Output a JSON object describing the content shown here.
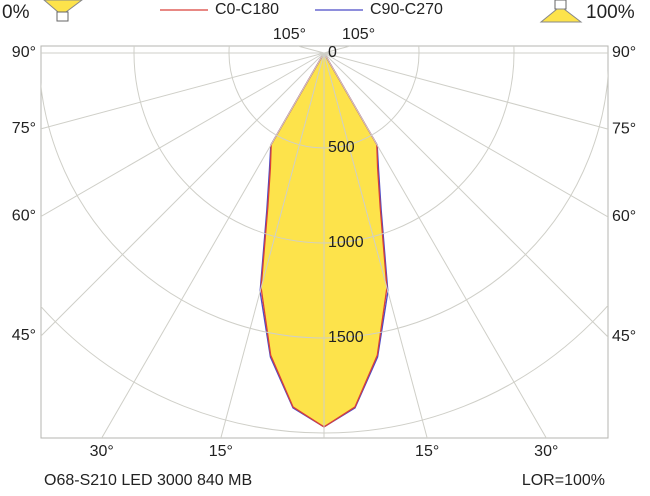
{
  "chart_data": {
    "type": "polar",
    "left_label": "0%",
    "right_label": "100%",
    "footer_left": "O68-S210 LED 3000 840 MB",
    "footer_right": "LOR=100%",
    "fill_color": "#fde34b",
    "angles": [
      0,
      5,
      10,
      15,
      20,
      25,
      30,
      35,
      40,
      45,
      50,
      55,
      60,
      65,
      70,
      75,
      80,
      85,
      90
    ],
    "series": [
      {
        "name": "C0-C180",
        "color": "#d9403a",
        "values": [
          1968,
          1870,
          1615,
          1280,
          865,
          668,
          556,
          0,
          0,
          0,
          0,
          0,
          0,
          0,
          0,
          0,
          0,
          0,
          0
        ]
      },
      {
        "name": "C90-C270",
        "color": "#4a4ac8",
        "values": [
          1968,
          1875,
          1625,
          1300,
          880,
          680,
          560,
          0,
          0,
          0,
          0,
          0,
          0,
          0,
          0,
          0,
          0,
          0,
          0
        ]
      }
    ],
    "rlim": [
      0,
      2000
    ],
    "rticks": [
      0,
      500,
      1000,
      1500
    ],
    "angle_ticks_left": [
      {
        "value": -90,
        "label": "90°"
      },
      {
        "value": -75,
        "label": "75°"
      },
      {
        "value": -60,
        "label": "60°"
      },
      {
        "value": -45,
        "label": "45°"
      }
    ],
    "angle_ticks_right": [
      {
        "value": 90,
        "label": "90°"
      },
      {
        "value": 75,
        "label": "75°"
      },
      {
        "value": 60,
        "label": "60°"
      },
      {
        "value": 45,
        "label": "45°"
      }
    ],
    "angle_ticks_bottom": [
      {
        "value": -30,
        "label": "30°"
      },
      {
        "value": -15,
        "label": "15°"
      },
      {
        "value": 15,
        "label": "15°"
      },
      {
        "value": 30,
        "label": "30°"
      }
    ],
    "angle_ticks_top": [
      {
        "value": -105,
        "label": "105°"
      },
      {
        "value": 105,
        "label": "105°"
      }
    ]
  }
}
